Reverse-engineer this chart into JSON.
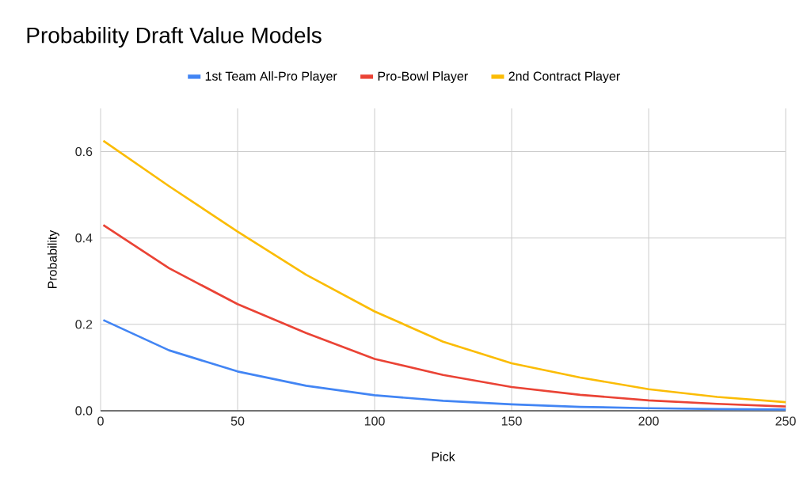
{
  "chart_data": {
    "type": "line",
    "title": "Probability Draft Value Models",
    "xlabel": "Pick",
    "ylabel": "Probability",
    "x": [
      1,
      25,
      50,
      75,
      100,
      125,
      150,
      175,
      200,
      225,
      250
    ],
    "series": [
      {
        "name": "1st Team All-Pro Player",
        "color": "#4285f4",
        "values": [
          0.21,
          0.14,
          0.091,
          0.058,
          0.036,
          0.023,
          0.015,
          0.009,
          0.006,
          0.004,
          0.003
        ]
      },
      {
        "name": "Pro-Bowl Player",
        "color": "#ea4335",
        "values": [
          0.43,
          0.33,
          0.247,
          0.18,
          0.12,
          0.083,
          0.055,
          0.037,
          0.024,
          0.016,
          0.01
        ]
      },
      {
        "name": "2nd Contract Player",
        "color": "#fbbc04",
        "values": [
          0.625,
          0.52,
          0.415,
          0.315,
          0.23,
          0.16,
          0.11,
          0.077,
          0.05,
          0.032,
          0.02
        ]
      }
    ],
    "xlim": [
      0,
      250
    ],
    "ylim": [
      0,
      0.7
    ],
    "xticks": [
      0,
      50,
      100,
      150,
      200,
      250
    ],
    "yticks": [
      {
        "value": 0,
        "label": "0.0"
      },
      {
        "value": 0.2,
        "label": "0.2"
      },
      {
        "value": 0.4,
        "label": "0.4"
      },
      {
        "value": 0.6,
        "label": "0.6"
      }
    ],
    "grid": true,
    "legend": "top",
    "marker": "none",
    "line_style": "solid"
  }
}
